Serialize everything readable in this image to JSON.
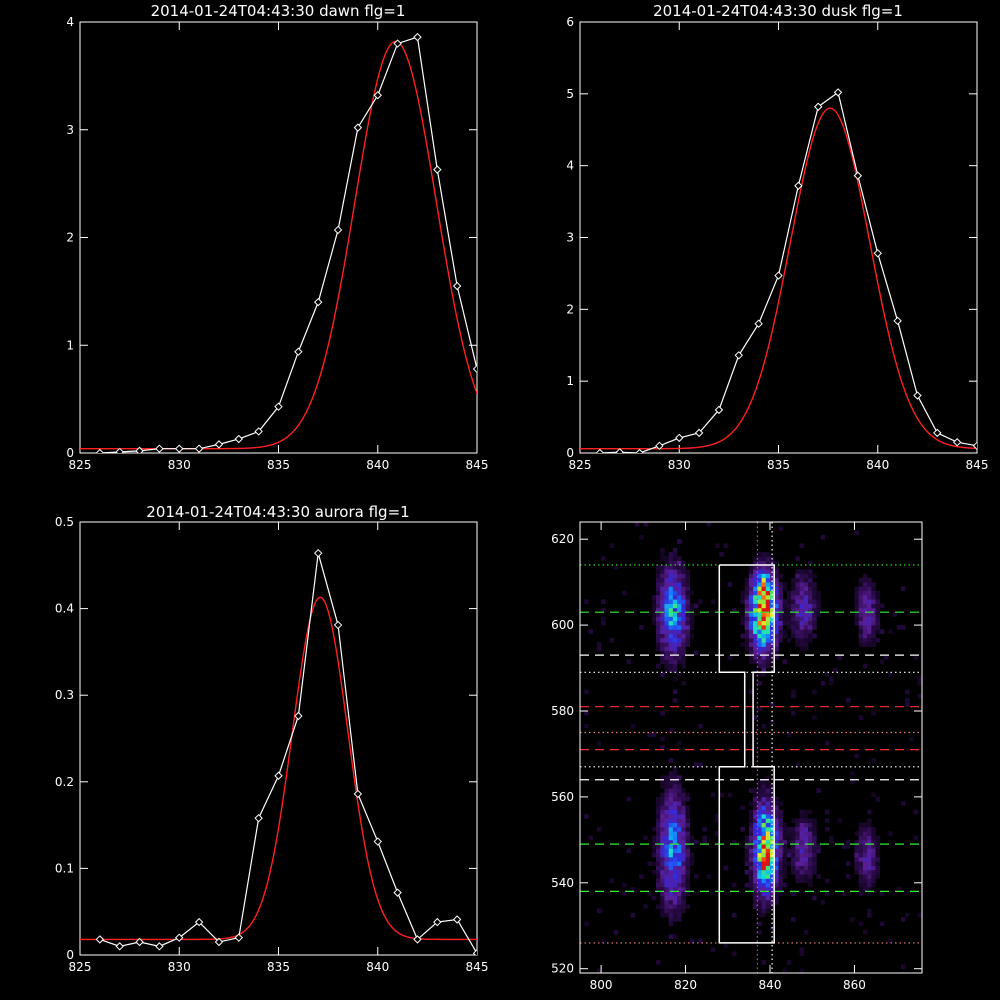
{
  "colors": {
    "background": "#000000",
    "axis": "#ffffff",
    "data_line": "#ffffff",
    "fit_line": "#ff2020",
    "green_line": "#33ee33",
    "red_line": "#ff3030",
    "white_line": "#ffffff",
    "magenta_line": "#d040d0",
    "salmon_line": "#f08080"
  },
  "chart_data": [
    {
      "type": "line",
      "title": "2014-01-24T04:43:30 dawn flg=1",
      "xlim": [
        825,
        845
      ],
      "ylim": [
        0,
        4
      ],
      "xticks": [
        825,
        830,
        835,
        840,
        845
      ],
      "yticks": [
        0,
        1,
        2,
        3,
        4
      ],
      "series": [
        {
          "role": "data",
          "marker": "diamond",
          "x": [
            826,
            827,
            828,
            829,
            830,
            831,
            832,
            833,
            834,
            835,
            836,
            837,
            838,
            839,
            840,
            841,
            842,
            843,
            844,
            845
          ],
          "y": [
            0.0,
            0.01,
            0.02,
            0.04,
            0.04,
            0.04,
            0.08,
            0.13,
            0.2,
            0.43,
            0.94,
            1.4,
            2.07,
            3.02,
            3.32,
            3.8,
            3.86,
            2.63,
            1.55,
            0.78
          ]
        },
        {
          "role": "fit",
          "gaussian": {
            "amplitude": 3.78,
            "center": 840.9,
            "sigma": 2.05,
            "offset": 0.04
          },
          "x_range": [
            825,
            845
          ]
        }
      ]
    },
    {
      "type": "line",
      "title": "2014-01-24T04:43:30 dusk flg=1",
      "xlim": [
        825,
        845
      ],
      "ylim": [
        0,
        6
      ],
      "xticks": [
        825,
        830,
        835,
        840,
        845
      ],
      "yticks": [
        0,
        1,
        2,
        3,
        4,
        5,
        6
      ],
      "series": [
        {
          "role": "data",
          "marker": "diamond",
          "x": [
            826,
            827,
            828,
            829,
            830,
            831,
            832,
            833,
            834,
            835,
            836,
            837,
            838,
            839,
            840,
            841,
            842,
            843,
            844,
            845
          ],
          "y": [
            0.0,
            0.01,
            0.0,
            0.1,
            0.21,
            0.28,
            0.6,
            1.36,
            1.8,
            2.47,
            3.72,
            4.82,
            5.02,
            3.86,
            2.78,
            1.84,
            0.8,
            0.28,
            0.15,
            0.1
          ]
        },
        {
          "role": "fit",
          "gaussian": {
            "amplitude": 4.74,
            "center": 837.6,
            "sigma": 2.0,
            "offset": 0.06
          },
          "x_range": [
            825,
            845
          ]
        }
      ]
    },
    {
      "type": "line",
      "title": "2014-01-24T04:43:30 aurora flg=1",
      "xlim": [
        825,
        845
      ],
      "ylim": [
        0,
        0.5
      ],
      "xticks": [
        825,
        830,
        835,
        840,
        845
      ],
      "yticks": [
        0.0,
        0.1,
        0.2,
        0.3,
        0.4,
        0.5
      ],
      "series": [
        {
          "role": "data",
          "marker": "diamond",
          "x": [
            826,
            827,
            828,
            829,
            830,
            831,
            832,
            833,
            834,
            835,
            836,
            837,
            838,
            839,
            840,
            841,
            842,
            843,
            844,
            845
          ],
          "y": [
            0.018,
            0.01,
            0.015,
            0.01,
            0.02,
            0.038,
            0.015,
            0.02,
            0.158,
            0.207,
            0.276,
            0.464,
            0.381,
            0.186,
            0.131,
            0.072,
            0.018,
            0.038,
            0.041,
            0.002
          ]
        },
        {
          "role": "fit",
          "gaussian": {
            "amplitude": 0.395,
            "center": 837.1,
            "sigma": 1.4,
            "offset": 0.018
          },
          "x_range": [
            825,
            845
          ]
        }
      ]
    },
    {
      "type": "heatmap",
      "xlim": [
        795,
        876
      ],
      "ylim": [
        519,
        624
      ],
      "xticks": [
        800,
        820,
        840,
        860
      ],
      "yticks": [
        520,
        540,
        560,
        580,
        600,
        620
      ],
      "blobs": [
        {
          "x": 817,
          "y": 603,
          "sx": 2.2,
          "sy": 7,
          "amp": 0.55
        },
        {
          "x": 838.5,
          "y": 603,
          "sx": 2.2,
          "sy": 6,
          "amp": 0.95
        },
        {
          "x": 839,
          "y": 609,
          "sx": 1.2,
          "sy": 2.5,
          "amp": 0.25
        },
        {
          "x": 848,
          "y": 604,
          "sx": 2.0,
          "sy": 5,
          "amp": 0.33
        },
        {
          "x": 863,
          "y": 603,
          "sx": 1.8,
          "sy": 5,
          "amp": 0.28
        },
        {
          "x": 817,
          "y": 548,
          "sx": 2.2,
          "sy": 9,
          "amp": 0.5
        },
        {
          "x": 839,
          "y": 548,
          "sx": 2.0,
          "sy": 7,
          "amp": 0.85
        },
        {
          "x": 839.5,
          "y": 544,
          "sx": 1.0,
          "sy": 2,
          "amp": 0.3
        },
        {
          "x": 848,
          "y": 548,
          "sx": 2.0,
          "sy": 5,
          "amp": 0.28
        },
        {
          "x": 863,
          "y": 546,
          "sx": 1.8,
          "sy": 5,
          "amp": 0.26
        }
      ],
      "hlines": [
        {
          "y": 614,
          "style": "dotted",
          "color": "green"
        },
        {
          "y": 603,
          "style": "dashed",
          "color": "green"
        },
        {
          "y": 593,
          "style": "dashed",
          "color": "white"
        },
        {
          "y": 589,
          "style": "dotted",
          "color": "white"
        },
        {
          "y": 581,
          "style": "dashed",
          "color": "red"
        },
        {
          "y": 575,
          "style": "dotted",
          "color": "salmon"
        },
        {
          "y": 571,
          "style": "dashed",
          "color": "red"
        },
        {
          "y": 567,
          "style": "dotted",
          "color": "white"
        },
        {
          "y": 564,
          "style": "dashed",
          "color": "white"
        },
        {
          "y": 549,
          "style": "dashed",
          "color": "green"
        },
        {
          "y": 538,
          "style": "dashed",
          "color": "green"
        },
        {
          "y": 526,
          "style": "dotted",
          "color": "salmon"
        }
      ],
      "vlines": [
        {
          "x": 837,
          "style": "dotted",
          "color": "magenta"
        },
        {
          "x": 840.5,
          "style": "dotted",
          "color": "white"
        }
      ],
      "outline": [
        [
          828,
          614
        ],
        [
          841,
          614
        ],
        [
          841,
          589
        ],
        [
          836,
          589
        ],
        [
          836,
          567
        ],
        [
          841,
          567
        ],
        [
          841,
          526
        ],
        [
          828,
          526
        ],
        [
          828,
          567
        ],
        [
          834,
          567
        ],
        [
          834,
          589
        ],
        [
          828,
          589
        ],
        [
          828,
          614
        ]
      ]
    }
  ]
}
